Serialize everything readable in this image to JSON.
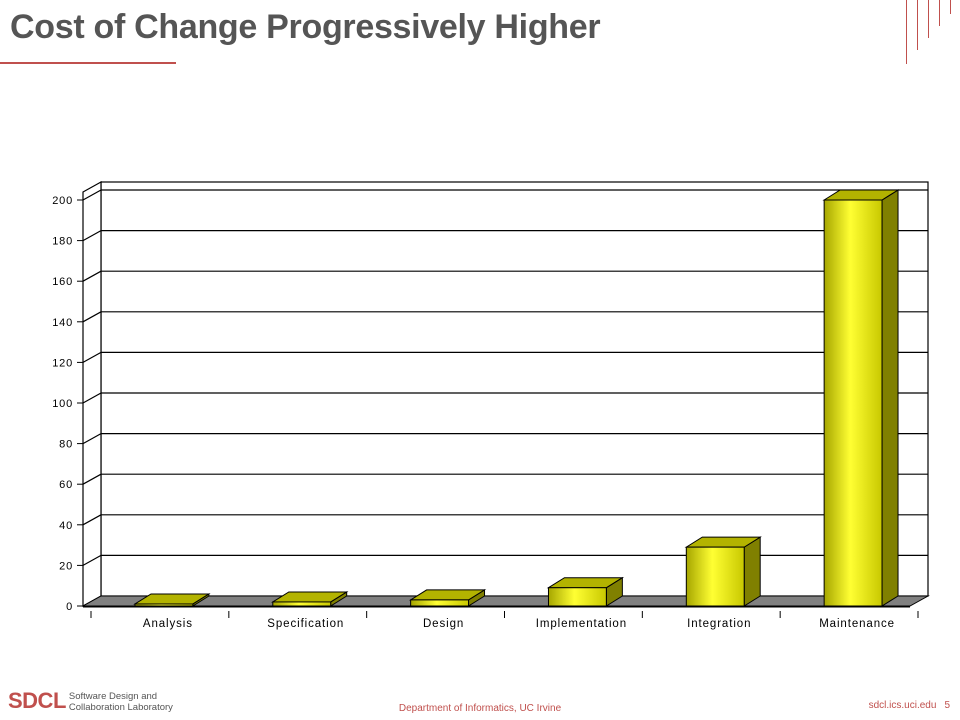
{
  "slide": {
    "title": "Cost of Change Progressively Higher",
    "footer_logo": "SDCL",
    "footer_logo_sub_1": "Software Design and",
    "footer_logo_sub_2": "Collaboration  Laboratory",
    "footer_center": "Department of Informatics, UC Irvine",
    "footer_url": "sdcl.ics.uci.edu",
    "page_number": "5"
  },
  "colors": {
    "accent": "#c0504d",
    "bar_front": "#ffff00",
    "bar_side": "#808000",
    "bar_top": "#b3b300",
    "floor": "#808080"
  },
  "chart_data": {
    "type": "bar",
    "title": "",
    "xlabel": "",
    "ylabel": "",
    "categories": [
      "Analysis",
      "Specification",
      "Design",
      "Implementation",
      "Integration",
      "Maintenance"
    ],
    "values": [
      1,
      2,
      3,
      9,
      29,
      200
    ],
    "ylim": [
      0,
      200
    ],
    "yticks": [
      0,
      20,
      40,
      60,
      80,
      100,
      120,
      140,
      160,
      180,
      200
    ],
    "grid": true,
    "style": "3d-bar"
  }
}
